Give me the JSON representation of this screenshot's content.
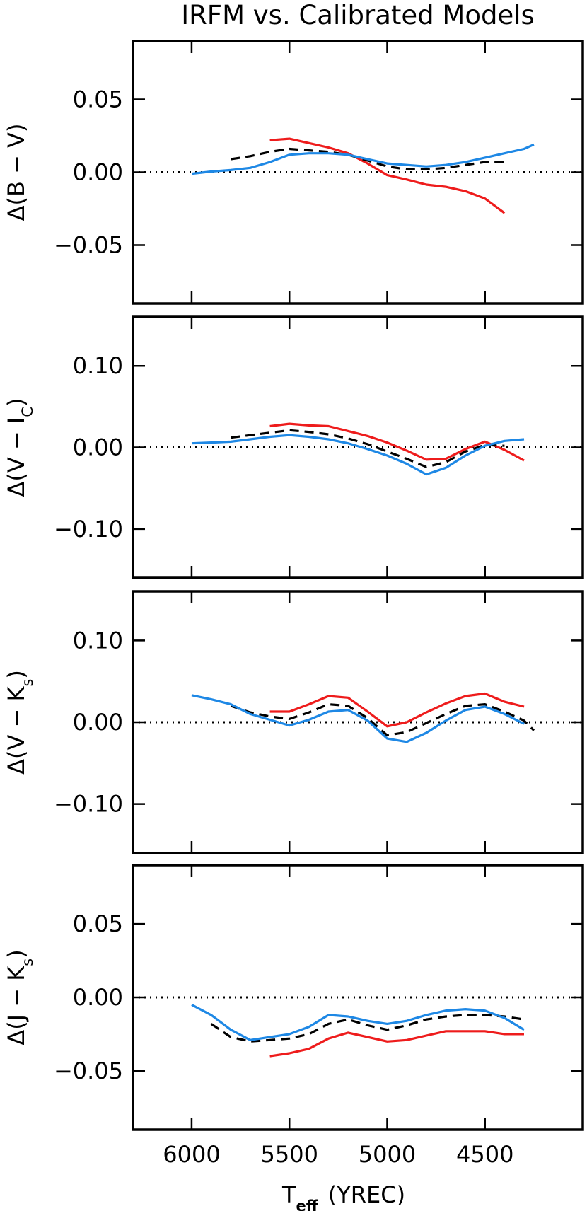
{
  "chart_data": [
    {
      "type": "line",
      "title": "IRFM vs. Calibrated Models",
      "ylabel": [
        "Δ(B − V)"
      ],
      "xlim": [
        6300,
        4000
      ],
      "xticks": [
        6000,
        5500,
        5000,
        4500
      ],
      "ylim": [
        -0.09,
        0.09
      ],
      "yticks": [
        {
          "value": 0.05,
          "label": "0.05"
        },
        {
          "value": 0,
          "label": "0.00"
        },
        {
          "value": -0.05,
          "label": "−0.05"
        }
      ],
      "hline": 0,
      "x": [
        6000,
        5900,
        5800,
        5700,
        5600,
        5500,
        5400,
        5300,
        5200,
        5100,
        5000,
        4900,
        4800,
        4700,
        4600,
        4500,
        4400,
        4300,
        4250
      ],
      "series": [
        {
          "color": "#ee1c1c",
          "style": "solid",
          "values": [
            null,
            null,
            null,
            null,
            0.022,
            0.023,
            0.02,
            0.017,
            0.013,
            0.006,
            -0.002,
            -0.005,
            -0.0085,
            -0.01,
            -0.013,
            -0.018,
            -0.028,
            null,
            null
          ]
        },
        {
          "color": "#000000",
          "style": "dashed",
          "values": [
            null,
            null,
            0.009,
            0.011,
            0.014,
            0.016,
            0.015,
            0.014,
            0.012,
            0.008,
            0.004,
            0.002,
            0.002,
            0.003,
            0.005,
            0.007,
            0.007,
            null,
            null
          ]
        },
        {
          "color": "#1e88e5",
          "style": "solid",
          "values": [
            -0.001,
            0.0005,
            0.0015,
            0.003,
            0.007,
            0.012,
            0.013,
            0.013,
            0.012,
            0.009,
            0.006,
            0.005,
            0.004,
            0.005,
            0.007,
            0.01,
            0.013,
            0.016,
            0.019
          ]
        }
      ]
    },
    {
      "type": "line",
      "ylabel": [
        "Δ(V − I",
        "C",
        ")"
      ],
      "xlim": [
        6300,
        4000
      ],
      "xticks": [
        6000,
        5500,
        5000,
        4500
      ],
      "ylim": [
        -0.16,
        0.16
      ],
      "yticks": [
        {
          "value": 0.1,
          "label": "0.10"
        },
        {
          "value": 0,
          "label": "0.00"
        },
        {
          "value": -0.1,
          "label": "−0.10"
        }
      ],
      "hline": 0,
      "x": [
        6000,
        5900,
        5800,
        5700,
        5600,
        5500,
        5400,
        5300,
        5200,
        5100,
        5000,
        4900,
        4800,
        4700,
        4600,
        4500,
        4400,
        4300,
        4250
      ],
      "series": [
        {
          "color": "#ee1c1c",
          "style": "solid",
          "values": [
            null,
            null,
            null,
            null,
            0.026,
            0.029,
            0.027,
            0.026,
            0.02,
            0.014,
            0.006,
            -0.004,
            -0.015,
            -0.014,
            -0.002,
            0.007,
            -0.003,
            -0.016,
            null
          ]
        },
        {
          "color": "#000000",
          "style": "dashed",
          "values": [
            null,
            null,
            0.012,
            0.015,
            0.018,
            0.021,
            0.019,
            0.016,
            0.011,
            0.004,
            -0.005,
            -0.014,
            -0.024,
            -0.018,
            -0.005,
            0.003,
            0.002,
            null,
            null
          ]
        },
        {
          "color": "#1e88e5",
          "style": "solid",
          "values": [
            0.005,
            0.006,
            0.007,
            0.01,
            0.013,
            0.015,
            0.013,
            0.01,
            0.005,
            -0.002,
            -0.01,
            -0.02,
            -0.033,
            -0.025,
            -0.01,
            0.002,
            0.008,
            0.01,
            null
          ]
        }
      ]
    },
    {
      "type": "line",
      "ylabel": [
        "Δ(V − K",
        "s",
        ")"
      ],
      "xlim": [
        6300,
        4000
      ],
      "xticks": [
        6000,
        5500,
        5000,
        4500
      ],
      "ylim": [
        -0.16,
        0.16
      ],
      "yticks": [
        {
          "value": 0.1,
          "label": "0.10"
        },
        {
          "value": 0,
          "label": "0.00"
        },
        {
          "value": -0.1,
          "label": "−0.10"
        }
      ],
      "hline": 0,
      "x": [
        6000,
        5900,
        5800,
        5700,
        5600,
        5500,
        5400,
        5300,
        5200,
        5100,
        5000,
        4900,
        4800,
        4700,
        4600,
        4500,
        4400,
        4300,
        4250
      ],
      "series": [
        {
          "color": "#ee1c1c",
          "style": "solid",
          "values": [
            null,
            null,
            null,
            null,
            0.013,
            0.013,
            0.022,
            0.032,
            0.03,
            0.013,
            -0.005,
            0.0,
            0.012,
            0.023,
            0.032,
            0.035,
            0.025,
            0.019,
            null
          ]
        },
        {
          "color": "#000000",
          "style": "dashed",
          "values": [
            null,
            null,
            0.02,
            0.012,
            0.007,
            0.004,
            0.012,
            0.022,
            0.02,
            0.005,
            -0.016,
            -0.012,
            -0.001,
            0.01,
            0.02,
            0.022,
            0.013,
            0.002,
            -0.01
          ]
        },
        {
          "color": "#1e88e5",
          "style": "solid",
          "values": [
            0.033,
            0.028,
            0.022,
            0.01,
            0.003,
            -0.004,
            0.003,
            0.013,
            0.015,
            0.002,
            -0.02,
            -0.024,
            -0.013,
            0.002,
            0.015,
            0.019,
            0.01,
            -0.002,
            null
          ]
        }
      ]
    },
    {
      "type": "line",
      "ylabel": [
        "Δ(J − K",
        "s",
        ")"
      ],
      "xlabel": [
        "T",
        "eff",
        "(YREC)"
      ],
      "xlim": [
        6300,
        4000
      ],
      "xticks": [
        6000,
        5500,
        5000,
        4500
      ],
      "ylim": [
        -0.09,
        0.09
      ],
      "yticks": [
        {
          "value": 0.05,
          "label": "0.05"
        },
        {
          "value": 0,
          "label": "0.00"
        },
        {
          "value": -0.05,
          "label": "−0.05"
        }
      ],
      "hline": 0,
      "x": [
        6000,
        5900,
        5800,
        5700,
        5600,
        5500,
        5400,
        5300,
        5200,
        5100,
        5000,
        4900,
        4800,
        4700,
        4600,
        4500,
        4400,
        4300,
        4250
      ],
      "series": [
        {
          "color": "#ee1c1c",
          "style": "solid",
          "values": [
            null,
            null,
            null,
            null,
            -0.04,
            -0.038,
            -0.035,
            -0.028,
            -0.024,
            -0.027,
            -0.03,
            -0.029,
            -0.026,
            -0.023,
            -0.023,
            -0.023,
            -0.025,
            -0.025,
            null
          ]
        },
        {
          "color": "#000000",
          "style": "dashed",
          "values": [
            null,
            -0.018,
            -0.027,
            -0.03,
            -0.029,
            -0.028,
            -0.025,
            -0.018,
            -0.015,
            -0.019,
            -0.022,
            -0.019,
            -0.015,
            -0.013,
            -0.012,
            -0.012,
            -0.013,
            -0.015,
            null
          ]
        },
        {
          "color": "#1e88e5",
          "style": "solid",
          "values": [
            -0.005,
            -0.012,
            -0.022,
            -0.029,
            -0.027,
            -0.025,
            -0.02,
            -0.012,
            -0.013,
            -0.016,
            -0.018,
            -0.016,
            -0.012,
            -0.009,
            -0.008,
            -0.009,
            -0.014,
            -0.022,
            null
          ]
        }
      ]
    }
  ]
}
